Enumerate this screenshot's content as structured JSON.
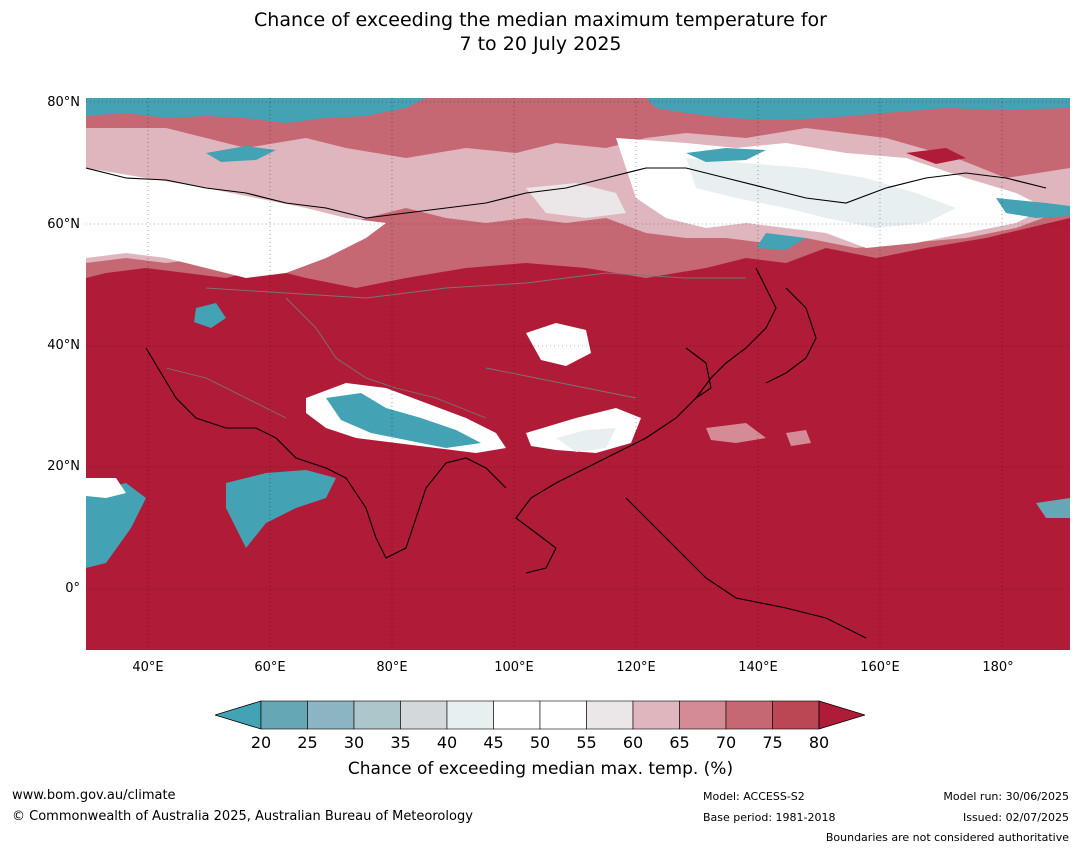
{
  "title": {
    "line1": "Chance of exceeding the median maximum temperature for",
    "line2": "7 to 20 July 2025"
  },
  "map": {
    "region": "Asia",
    "lat_range": [
      -10,
      80
    ],
    "lon_range": [
      30,
      191
    ],
    "lat_labels": [
      "80°N",
      "60°N",
      "40°N",
      "20°N",
      "0°"
    ],
    "lon_labels": [
      "40°E",
      "60°E",
      "80°E",
      "100°E",
      "120°E",
      "140°E",
      "160°E",
      "180°"
    ],
    "gridlines": true,
    "base_color": "#b01b37"
  },
  "colorbar": {
    "ticks": [
      "20",
      "25",
      "30",
      "35",
      "40",
      "45",
      "50",
      "55",
      "60",
      "65",
      "70",
      "75",
      "80"
    ],
    "colors": [
      "#65a7b5",
      "#8cb5c3",
      "#adc6cb",
      "#d3d9da",
      "#e8eff1",
      "#ffffff",
      "#ffffff",
      "#ebe6e8",
      "#dfb6be",
      "#d48b96",
      "#c66874",
      "#bb4755"
    ],
    "under_color": "#43a2b3",
    "over_color": "#b01b37",
    "caption": "Chance of exceeding median max. temp. (%)"
  },
  "footer": {
    "website": "www.bom.gov.au/climate",
    "copyright": "© Commonwealth of Australia 2025, Australian Bureau of Meteorology",
    "model": "Model: ACCESS-S2",
    "base_period": "Base period: 1981-2018",
    "model_run": "Model run: 30/06/2025",
    "issued": "Issued: 02/07/2025",
    "disclaimer": "Boundaries are not considered authoritative"
  }
}
